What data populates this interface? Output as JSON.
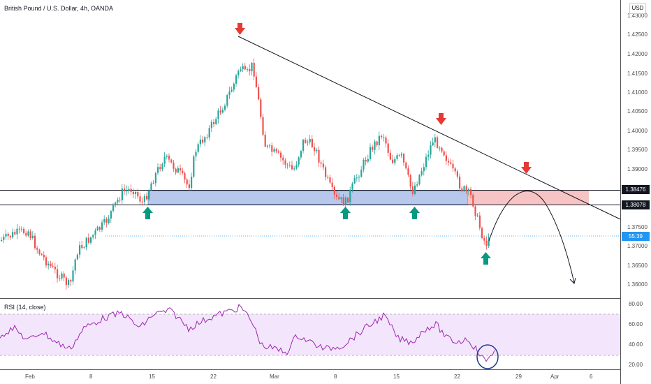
{
  "header": {
    "title": "British Pound / U.S. Dollar, 4h, OANDA",
    "currency": "USD"
  },
  "rsi": {
    "title": "RSI (14, close)",
    "levels": [
      "80.00",
      "60.00",
      "40.00",
      "20.00"
    ]
  },
  "price_axis": {
    "ticks": [
      "1.43000",
      "1.42500",
      "1.42000",
      "1.41500",
      "1.41000",
      "1.40500",
      "1.40000",
      "1.39500",
      "1.39000",
      "1.37500",
      "1.37000",
      "1.36500",
      "1.36000"
    ],
    "resistance_label": "1.38476",
    "support_label": "1.38078",
    "countdown_label": "55:39"
  },
  "time_axis": {
    "labels": [
      "Feb",
      "8",
      "15",
      "22",
      "Mar",
      "8",
      "15",
      "22",
      "29",
      "Apr",
      "6"
    ]
  },
  "colors": {
    "up_candle": "#26a69a",
    "down_candle": "#ef5350",
    "zone_blue": "#b7c8ec",
    "zone_red": "#f6c4c4",
    "arrow_up": "#089981",
    "arrow_down": "#e53935",
    "rsi_line": "#9c27b0",
    "rsi_band": "#f3e5fb",
    "highlight_circle": "#1e3a8a"
  },
  "chart_data": {
    "type": "candlestick",
    "symbol": "GBPUSD",
    "timeframe": "4h",
    "x": [
      "Feb",
      "8",
      "15",
      "22",
      "Mar",
      "8",
      "15",
      "22",
      "29",
      "Apr",
      "6"
    ],
    "price_range": [
      1.358,
      1.432
    ],
    "key_levels": [
      1.38476,
      1.38078
    ],
    "trendline_from": 1.4243,
    "trendline_to": 1.3783,
    "rsi_range": [
      15,
      85
    ],
    "rsi_bands": [
      30,
      70
    ]
  }
}
